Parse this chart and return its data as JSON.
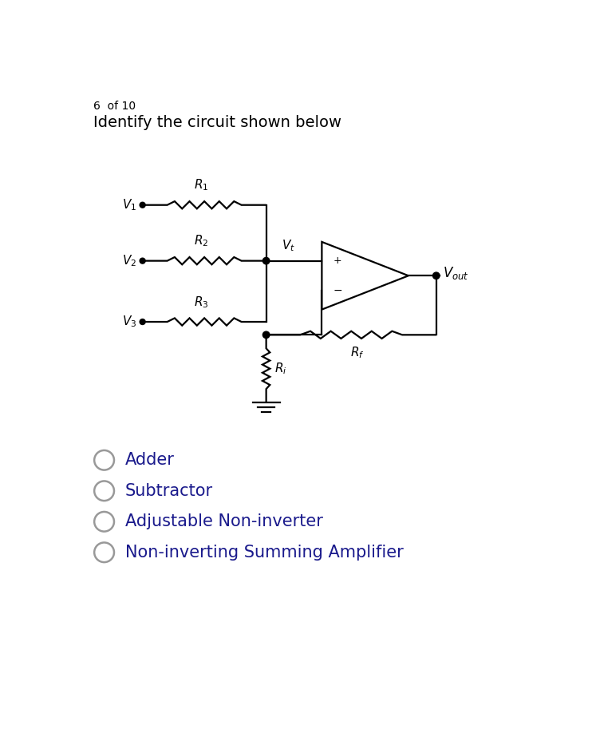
{
  "title_line1": "6  of 10",
  "title_line2": "Identify the circuit shown below",
  "options": [
    "Adder",
    "Subtractor",
    "Adjustable Non-inverter",
    "Non-inverting Summing Amplifier"
  ],
  "bg_color": "#ffffff",
  "text_color": "#000000",
  "options_color": "#1a1a8c",
  "line_color": "#000000",
  "font_size_title1": 10,
  "font_size_title2": 14,
  "font_size_labels": 12,
  "font_size_options": 15
}
